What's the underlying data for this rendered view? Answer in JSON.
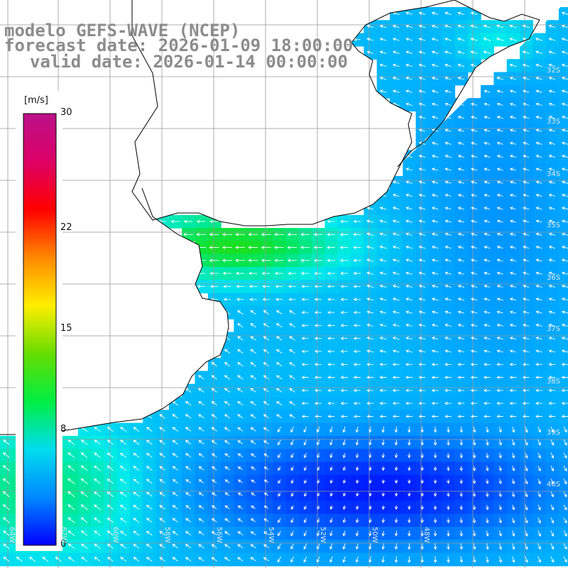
{
  "title": {
    "model": "modelo GEFS-WAVE (NCEP)",
    "forecast": "forecast date: 2026-01-09 18:00:00",
    "valid": "valid date: 2026-01-14 00:00:00"
  },
  "colorbar": {
    "unit": "[m/s]",
    "ticks": [
      "30",
      "22",
      "15",
      "8",
      "0"
    ],
    "tick_values": [
      30,
      22,
      15,
      8,
      0
    ],
    "range": [
      0,
      30
    ],
    "colors": [
      "#0000ff",
      "#0088ff",
      "#00ddee",
      "#00ee44",
      "#66dd00",
      "#ffee00",
      "#ff8800",
      "#ff0000",
      "#dd0066",
      "#bb1188"
    ]
  },
  "lat_labels": [
    "32S",
    "33S",
    "34S",
    "35S",
    "36S",
    "37S",
    "38S",
    "39S",
    "40S"
  ],
  "lon_labels": [
    "64W",
    "62W",
    "60W",
    "58W",
    "56W",
    "54W",
    "52W",
    "50W",
    "48W"
  ],
  "colors": {
    "land": "#ffffff",
    "coast": "#000000",
    "grid": "#999999",
    "arrow": "#ffffff",
    "title": "#8c8c8c"
  }
}
